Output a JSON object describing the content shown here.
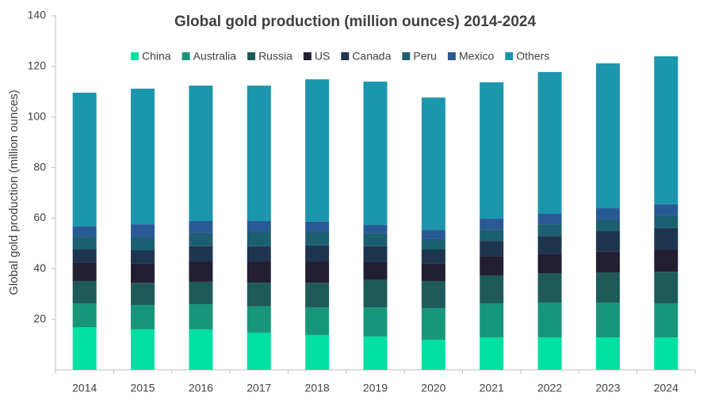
{
  "chart_data": {
    "type": "stacked_bar",
    "title": "Global gold production (million ounces) 2014-2024",
    "y_label": "Global gold production (million ounces)",
    "categories": [
      "2014",
      "2015",
      "2016",
      "2017",
      "2018",
      "2019",
      "2020",
      "2021",
      "2022",
      "2023",
      "2024"
    ],
    "series": [
      {
        "name": "China",
        "color": "#00e0a0",
        "values": [
          16.9,
          16.0,
          16.0,
          14.7,
          13.8,
          13.2,
          11.9,
          12.8,
          12.8,
          12.8,
          12.8
        ]
      },
      {
        "name": "Australia",
        "color": "#17967a",
        "values": [
          9.4,
          9.7,
          10.0,
          10.4,
          10.9,
          11.5,
          12.5,
          13.5,
          13.8,
          13.8,
          13.5
        ]
      },
      {
        "name": "Russia",
        "color": "#1f5a5a",
        "values": [
          8.8,
          8.7,
          8.8,
          9.3,
          9.7,
          11.0,
          10.7,
          11.0,
          11.6,
          11.9,
          12.5
        ]
      },
      {
        "name": "US",
        "color": "#231f33",
        "values": [
          7.2,
          7.6,
          8.1,
          8.5,
          8.5,
          6.9,
          6.9,
          7.5,
          7.8,
          8.2,
          8.8
        ]
      },
      {
        "name": "Canada",
        "color": "#1e3550",
        "values": [
          5.3,
          5.3,
          6.0,
          6.0,
          6.3,
          6.3,
          5.6,
          6.2,
          6.9,
          8.1,
          8.5
        ]
      },
      {
        "name": "Peru",
        "color": "#1c5f70",
        "values": [
          5.0,
          5.0,
          5.3,
          5.6,
          5.3,
          5.0,
          4.1,
          4.4,
          4.7,
          4.4,
          5.0
        ]
      },
      {
        "name": "Mexico",
        "color": "#2a5a95",
        "values": [
          4.1,
          5.3,
          4.7,
          4.4,
          4.1,
          3.4,
          3.7,
          4.4,
          4.1,
          4.7,
          4.4
        ]
      },
      {
        "name": "Others",
        "color": "#1b96ac",
        "values": [
          52.9,
          53.6,
          53.5,
          53.5,
          56.3,
          56.7,
          52.3,
          53.9,
          56.1,
          57.3,
          58.5
        ]
      }
    ],
    "ylim": [
      0,
      140
    ],
    "yticks": [
      20,
      40,
      60,
      80,
      100,
      120,
      140
    ],
    "grid": false,
    "legend": "top"
  }
}
